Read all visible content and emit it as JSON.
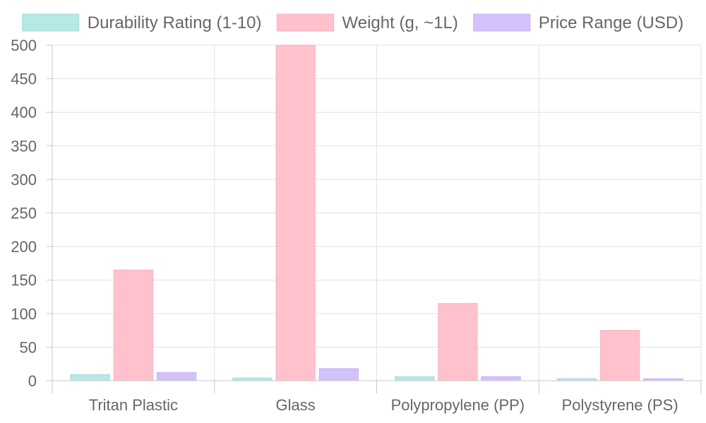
{
  "chart_data": {
    "type": "bar",
    "categories": [
      "Tritan Plastic",
      "Glass",
      "Polypropylene (PP)",
      "Polystyrene (PS)"
    ],
    "series": [
      {
        "name": "Durability Rating (1-10)",
        "values": [
          9,
          4,
          6,
          3
        ],
        "color": "#b6e8e6",
        "border": "#a3dcd9"
      },
      {
        "name": "Weight (g, ~1L)",
        "values": [
          165,
          500,
          115,
          75
        ],
        "color": "#ffc1cc",
        "border": "#ffb0bf"
      },
      {
        "name": "Price Range (USD)",
        "values": [
          12,
          18,
          6,
          3
        ],
        "color": "#d3c1fb",
        "border": "#c5b0f5"
      }
    ],
    "yticks": [
      "0",
      "50",
      "100",
      "150",
      "200",
      "250",
      "300",
      "350",
      "400",
      "450",
      "500"
    ],
    "ylim": [
      0,
      500
    ],
    "grid": true,
    "legend_position": "top"
  }
}
